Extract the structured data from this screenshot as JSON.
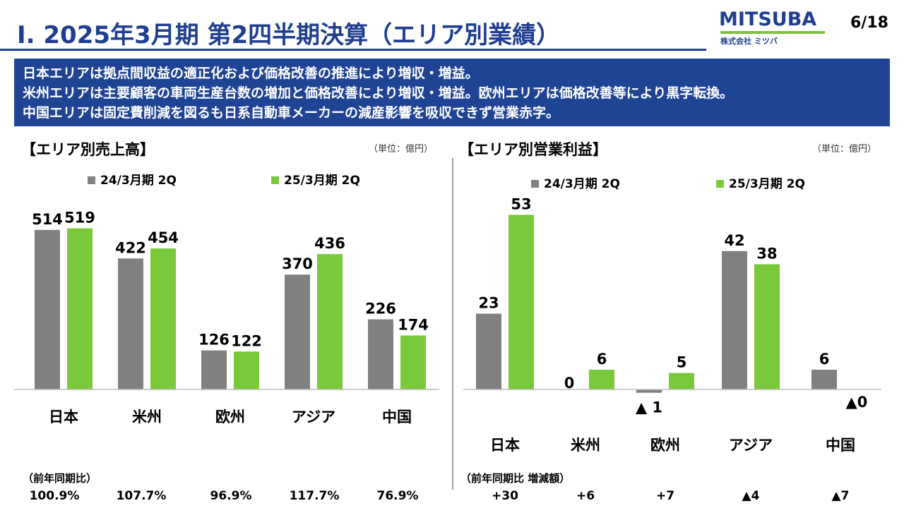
{
  "header": {
    "title": "Ⅰ. 2025年3月期 第2四半期決算（エリア別業績）",
    "page": "6/18",
    "logo_text": "MITSUBA",
    "logo_sub": "株式会社 ミツバ"
  },
  "summary": [
    "日本エリアは拠点間収益の適正化および価格改善の推進により増収・増益。",
    "米州エリアは主要顧客の車両生産台数の増加と価格改善により増収・増益。欧州エリアは価格改善等により黒字転換。",
    "中国エリアは固定費削減を図るも日系自動車メーカーの減産影響を吸収できず営業赤字。"
  ],
  "colors": {
    "prev": "#808080",
    "curr": "#7ac93a",
    "brand": "#1f3e8f"
  },
  "chart_data": [
    {
      "type": "bar",
      "title": "【エリア別売上高】",
      "unit": "（単位：億円）",
      "categories": [
        "日本",
        "米州",
        "欧州",
        "アジア",
        "中国"
      ],
      "series": [
        {
          "name": "24/3月期 2Q",
          "values": [
            514,
            422,
            126,
            370,
            226
          ],
          "labels": [
            "514",
            "422",
            "126",
            "370",
            "226"
          ]
        },
        {
          "name": "25/3月期 2Q",
          "values": [
            519,
            454,
            122,
            436,
            174
          ],
          "labels": [
            "519",
            "454",
            "122",
            "436",
            "174"
          ]
        }
      ],
      "legend_position": "top",
      "yoy_label": "（前年同期比）",
      "yoy": [
        "100.9%",
        "107.7%",
        "96.9%",
        "117.7%",
        "76.9%"
      ]
    },
    {
      "type": "bar",
      "title": "【エリア別営業利益】",
      "unit": "（単位：億円）",
      "categories": [
        "日本",
        "米州",
        "欧州",
        "アジア",
        "中国"
      ],
      "series": [
        {
          "name": "24/3月期 2Q",
          "values": [
            23,
            0,
            -1,
            42,
            6
          ],
          "labels": [
            "23",
            "0",
            "▲ 1",
            "42",
            "6"
          ]
        },
        {
          "name": "25/3月期 2Q",
          "values": [
            53,
            6,
            5,
            38,
            0
          ],
          "labels": [
            "53",
            "6",
            "5",
            "38",
            "▲0"
          ]
        }
      ],
      "legend_position": "top",
      "yoy_label": "（前年同期比 増減額）",
      "yoy": [
        "+30",
        "+6",
        "+7",
        "▲4",
        "▲7"
      ]
    }
  ]
}
